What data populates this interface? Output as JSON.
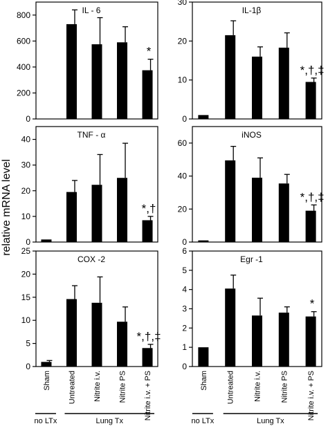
{
  "ylabel": "relative mRNA level",
  "categories": [
    "Sham",
    "Untreated",
    "Nitrite i.v.",
    "Nitrite PS",
    "Nitrite i.v. + PS"
  ],
  "groups": [
    {
      "label": "no LTx",
      "members": [
        "Sham"
      ]
    },
    {
      "label": "Lung Tx",
      "members": [
        "Untreated",
        "Nitrite i.v.",
        "Nitrite PS",
        "Nitrite i.v. + PS"
      ]
    }
  ],
  "chart_data": [
    {
      "type": "bar",
      "title": "IL - 6",
      "ylim": [
        0,
        900
      ],
      "yticks": [
        0,
        200,
        400,
        600,
        800
      ],
      "categories": [
        "Sham",
        "Untreated",
        "Nitrite i.v.",
        "Nitrite PS",
        "Nitrite i.v. + PS"
      ],
      "values": [
        0,
        730,
        575,
        590,
        375
      ],
      "errors": [
        0,
        110,
        205,
        120,
        85
      ],
      "annotations": [
        "",
        "",
        "",
        "",
        "*"
      ]
    },
    {
      "type": "bar",
      "title": "IL-1β",
      "ylim": [
        0,
        30
      ],
      "yticks": [
        0,
        10,
        20,
        30
      ],
      "categories": [
        "Sham",
        "Untreated",
        "Nitrite i.v.",
        "Nitrite PS",
        "Nitrite i.v. + PS"
      ],
      "values": [
        1,
        21.5,
        16,
        18.3,
        9.5
      ],
      "errors": [
        0,
        3.7,
        2.5,
        3.8,
        1
      ],
      "annotations": [
        "",
        "",
        "",
        "",
        "*,†,‡"
      ]
    },
    {
      "type": "bar",
      "title": "TNF - α",
      "ylim": [
        0,
        45
      ],
      "yticks": [
        0,
        10,
        20,
        30,
        40
      ],
      "categories": [
        "Sham",
        "Untreated",
        "Nitrite i.v.",
        "Nitrite PS",
        "Nitrite i.v. + PS"
      ],
      "values": [
        1,
        19.5,
        22.3,
        25,
        8.5
      ],
      "errors": [
        0,
        4.5,
        11.8,
        13.5,
        1.5
      ],
      "annotations": [
        "",
        "",
        "",
        "",
        "*,†"
      ]
    },
    {
      "type": "bar",
      "title": "iNOS",
      "ylim": [
        0,
        70
      ],
      "yticks": [
        0,
        20,
        40,
        60
      ],
      "categories": [
        "Sham",
        "Untreated",
        "Nitrite i.v.",
        "Nitrite PS",
        "Nitrite i.v. + PS"
      ],
      "values": [
        1,
        49.5,
        39,
        35.5,
        19
      ],
      "errors": [
        0,
        8.5,
        12,
        5.5,
        3.5
      ],
      "annotations": [
        "",
        "",
        "",
        "",
        "*,†,‡"
      ]
    },
    {
      "type": "bar",
      "title": "COX -2",
      "ylim": [
        0,
        25
      ],
      "yticks": [
        0,
        5,
        10,
        15,
        20,
        25
      ],
      "categories": [
        "Sham",
        "Untreated",
        "Nitrite i.v.",
        "Nitrite PS",
        "Nitrite i.v. + PS"
      ],
      "values": [
        1,
        14.6,
        13.8,
        9.7,
        4
      ],
      "errors": [
        0.3,
        2.9,
        5.6,
        3.2,
        0.8
      ],
      "annotations": [
        "",
        "",
        "",
        "",
        "*,†,‡"
      ]
    },
    {
      "type": "bar",
      "title": "Egr -1",
      "ylim": [
        0,
        6
      ],
      "yticks": [
        0,
        1,
        2,
        3,
        4,
        5,
        6
      ],
      "categories": [
        "Sham",
        "Untreated",
        "Nitrite i.v.",
        "Nitrite PS",
        "Nitrite i.v. + PS"
      ],
      "values": [
        1,
        4.05,
        2.65,
        2.8,
        2.6
      ],
      "errors": [
        0,
        0.7,
        0.9,
        0.3,
        0.25
      ],
      "annotations": [
        "",
        "",
        "",
        "",
        "*"
      ]
    }
  ]
}
